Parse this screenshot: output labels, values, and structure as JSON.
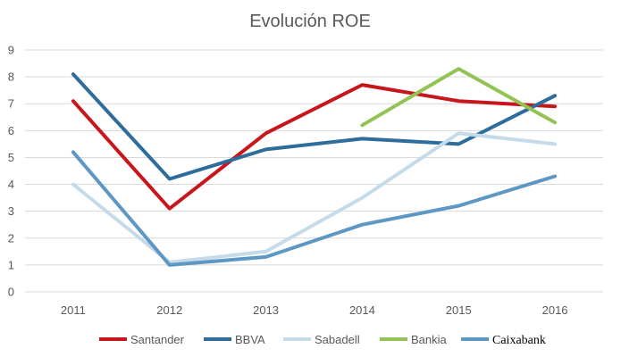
{
  "chart_data": {
    "type": "line",
    "title": "Evolución ROE",
    "xlabel": "",
    "ylabel": "",
    "categories": [
      "2011",
      "2012",
      "2013",
      "2014",
      "2015",
      "2016"
    ],
    "ylim": [
      0,
      9
    ],
    "yticks": [
      "0",
      "1",
      "2",
      "3",
      "4",
      "5",
      "6",
      "7",
      "8",
      "9"
    ],
    "grid": true,
    "legend_position": "bottom",
    "series": [
      {
        "name": "Santander",
        "color": "#c8161d",
        "values": [
          7.1,
          3.1,
          5.9,
          7.7,
          7.1,
          6.9
        ]
      },
      {
        "name": "BBVA",
        "color": "#2e6c9b",
        "values": [
          8.1,
          4.2,
          5.3,
          5.7,
          5.5,
          7.3
        ]
      },
      {
        "name": "Sabadell",
        "color": "#c5dbe9",
        "values": [
          4.0,
          1.1,
          1.5,
          3.5,
          5.9,
          5.5
        ]
      },
      {
        "name": "Bankia",
        "color": "#92c353",
        "values": [
          null,
          null,
          null,
          6.2,
          8.3,
          6.3
        ]
      },
      {
        "name": "Caixabank",
        "color": "#5d97c4",
        "values": [
          5.2,
          1.0,
          1.3,
          2.5,
          3.2,
          4.3
        ]
      }
    ]
  }
}
